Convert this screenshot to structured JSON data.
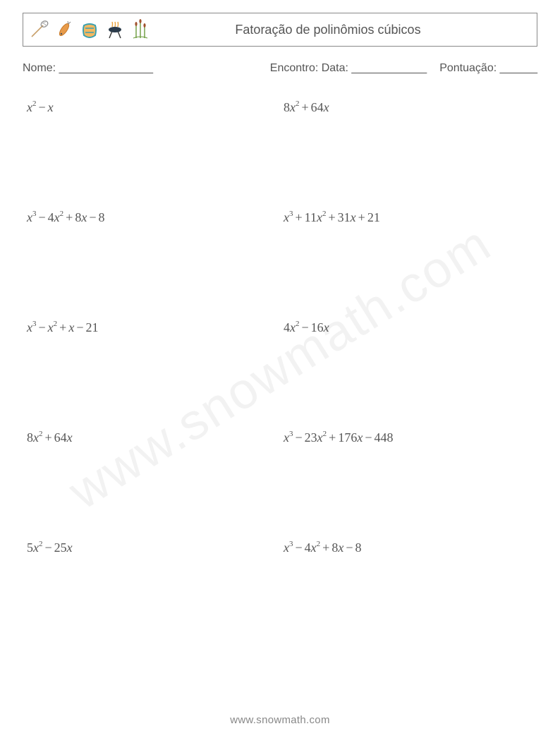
{
  "header": {
    "title": "Fatoração de polinômios cúbicos",
    "icons": [
      "net-icon",
      "lure-icon",
      "boat-icon",
      "pot-icon",
      "reeds-icon"
    ]
  },
  "info": {
    "name_label": "Nome: _______________",
    "date_label": "Encontro: Data: ____________",
    "score_label": "Pontuação: ______"
  },
  "problems": [
    {
      "terms": [
        {
          "c": "",
          "e": 2
        },
        {
          "op": "−",
          "c": "",
          "e": 1
        }
      ]
    },
    {
      "terms": [
        {
          "c": "8",
          "e": 2
        },
        {
          "op": "+",
          "c": "64",
          "e": 1
        }
      ]
    },
    {
      "terms": [
        {
          "c": "",
          "e": 3
        },
        {
          "op": "−",
          "c": "4",
          "e": 2
        },
        {
          "op": "+",
          "c": "8",
          "e": 1
        },
        {
          "op": "−",
          "c": "8",
          "e": 0
        }
      ]
    },
    {
      "terms": [
        {
          "c": "",
          "e": 3
        },
        {
          "op": "+",
          "c": "11",
          "e": 2
        },
        {
          "op": "+",
          "c": "31",
          "e": 1
        },
        {
          "op": "+",
          "c": "21",
          "e": 0
        }
      ]
    },
    {
      "terms": [
        {
          "c": "",
          "e": 3
        },
        {
          "op": "−",
          "c": "",
          "e": 2
        },
        {
          "op": "+",
          "c": "",
          "e": 1
        },
        {
          "op": "−",
          "c": "21",
          "e": 0
        }
      ]
    },
    {
      "terms": [
        {
          "c": "4",
          "e": 2
        },
        {
          "op": "−",
          "c": "16",
          "e": 1
        }
      ]
    },
    {
      "terms": [
        {
          "c": "8",
          "e": 2
        },
        {
          "op": "+",
          "c": "64",
          "e": 1
        }
      ]
    },
    {
      "terms": [
        {
          "c": "",
          "e": 3
        },
        {
          "op": "−",
          "c": "23",
          "e": 2
        },
        {
          "op": "+",
          "c": "176",
          "e": 1
        },
        {
          "op": "−",
          "c": "448",
          "e": 0
        }
      ]
    },
    {
      "terms": [
        {
          "c": "5",
          "e": 2
        },
        {
          "op": "−",
          "c": "25",
          "e": 1
        }
      ]
    },
    {
      "terms": [
        {
          "c": "",
          "e": 3
        },
        {
          "op": "−",
          "c": "4",
          "e": 2
        },
        {
          "op": "+",
          "c": "8",
          "e": 1
        },
        {
          "op": "−",
          "c": "8",
          "e": 0
        }
      ]
    }
  ],
  "footer": "www.snowmath.com",
  "watermark": "www.snowmath.com",
  "colors": {
    "text": "#555555",
    "border": "#888888",
    "footer": "#888888",
    "bg": "#ffffff"
  }
}
